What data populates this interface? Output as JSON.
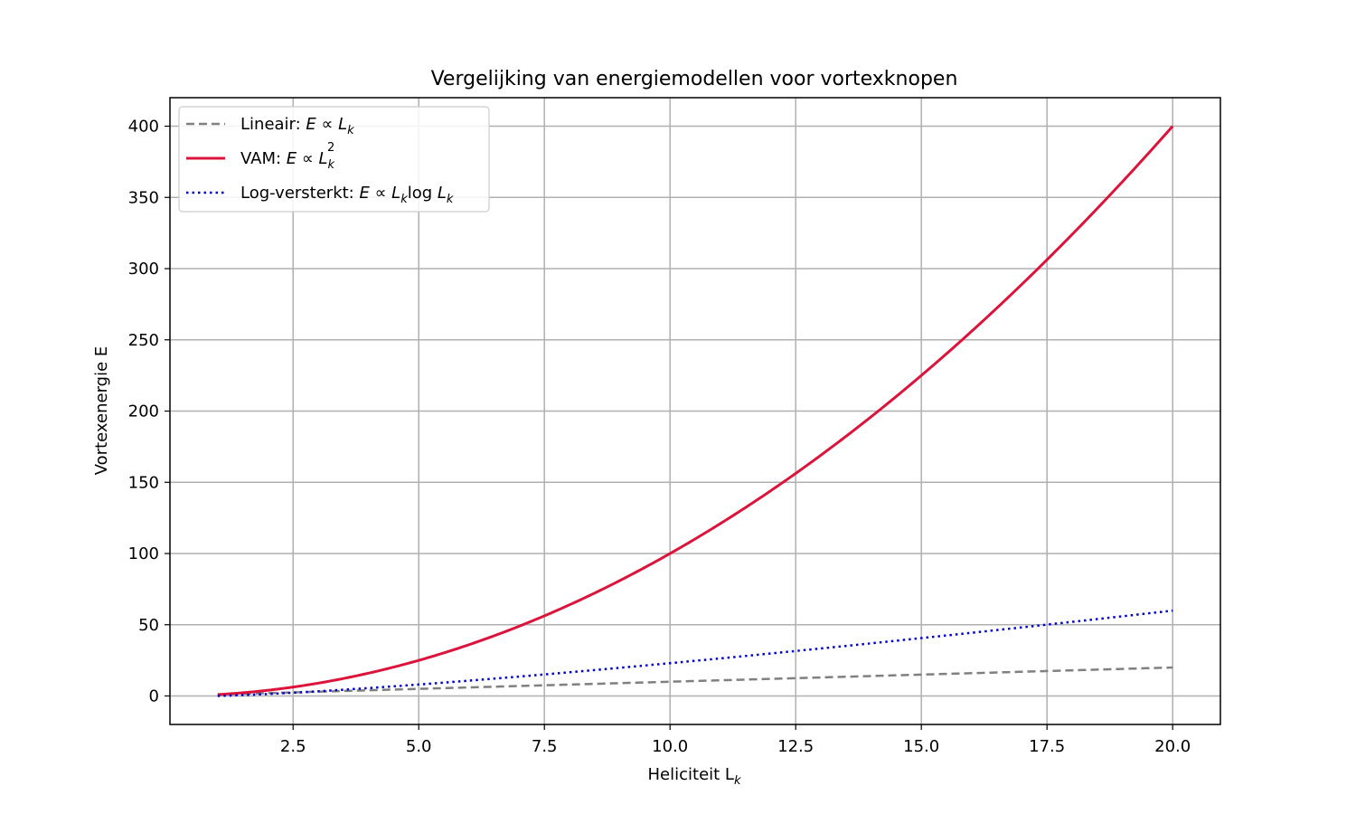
{
  "chart_data": {
    "type": "line",
    "title": "Vergelijking van energiemodellen voor vortexknopen",
    "xlabel": "Heliciteit L",
    "xlabel_sub": "k",
    "ylabel": "Vortexenergie E",
    "xlim": [
      0.05,
      20.95
    ],
    "ylim": [
      -20,
      420
    ],
    "xticks": [
      2.5,
      5.0,
      7.5,
      10.0,
      12.5,
      15.0,
      17.5,
      20.0
    ],
    "xtick_labels": [
      "2.5",
      "5.0",
      "7.5",
      "10.0",
      "12.5",
      "15.0",
      "17.5",
      "20.0"
    ],
    "yticks": [
      0,
      50,
      100,
      150,
      200,
      250,
      300,
      350,
      400
    ],
    "ytick_labels": [
      "0",
      "50",
      "100",
      "150",
      "200",
      "250",
      "300",
      "350",
      "400"
    ],
    "grid": true,
    "legend_position": "top-left",
    "x_domain": [
      1,
      20
    ],
    "series": [
      {
        "name": "Lineair: E ∝ L_k",
        "legend_prefix": "Lineair: ",
        "model": "linear",
        "color": "#808080",
        "style": "dashed",
        "width": 2.5,
        "x": [
          1,
          2,
          4,
          6,
          8,
          10,
          12,
          14,
          16,
          18,
          20
        ],
        "y": [
          1,
          2,
          4,
          6,
          8,
          10,
          12,
          14,
          16,
          18,
          20
        ]
      },
      {
        "name": "VAM: E ∝ L_k²",
        "legend_prefix": "VAM: ",
        "model": "quadratic",
        "color": "#dc143c",
        "style": "solid",
        "width": 3,
        "x": [
          1,
          2.5,
          5,
          7.5,
          10,
          12.5,
          15,
          17.5,
          20
        ],
        "y": [
          1,
          6.25,
          25,
          56.25,
          100,
          156.25,
          225,
          306.25,
          400
        ]
      },
      {
        "name": "Log-versterkt: E ∝ L_k log L_k",
        "legend_prefix": "Log-versterkt: ",
        "model": "loglinear",
        "color": "#0000cd",
        "style": "dotted",
        "width": 2.5,
        "x": [
          1,
          2.5,
          5,
          7.5,
          10,
          12.5,
          15,
          17.5,
          20
        ],
        "y": [
          0,
          2.29,
          8.05,
          15.11,
          23.03,
          31.57,
          40.62,
          50.09,
          59.91
        ]
      }
    ]
  }
}
